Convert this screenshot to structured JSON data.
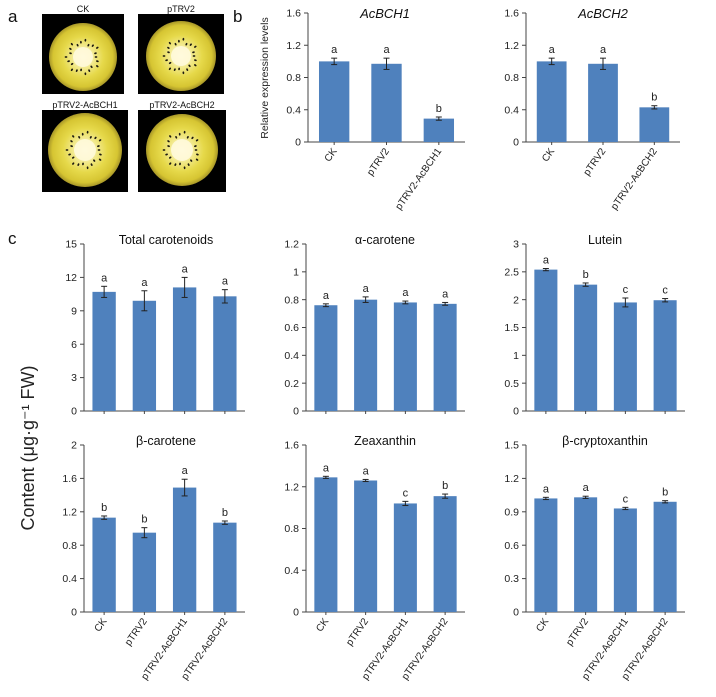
{
  "panel_labels": {
    "a": "a",
    "b": "b",
    "c": "c"
  },
  "fruit_labels": [
    "CK",
    "pTRV2",
    "pTRV2-AcBCH1",
    "pTRV2-AcBCH2"
  ],
  "y_label_b": "Relative expression levels",
  "y_label_c": "Content (μg·g⁻¹ FW)",
  "colors": {
    "bar": "#4f81bd",
    "axis": "#444444"
  },
  "chart_data": [
    {
      "id": "b1",
      "type": "bar",
      "title": "AcBCH1",
      "italic_title": true,
      "categories": [
        "CK",
        "pTRV2",
        "pTRV2-AcBCH1"
      ],
      "values": [
        1.0,
        0.97,
        0.29
      ],
      "errors": [
        0.04,
        0.07,
        0.02
      ],
      "letters": [
        "a",
        "a",
        "b"
      ],
      "ylim": [
        0,
        1.6
      ],
      "ticks": [
        "0",
        "0.4",
        "0.8",
        "1.2",
        "1.6"
      ],
      "ylabel": "Relative expression levels",
      "grid": false
    },
    {
      "id": "b2",
      "type": "bar",
      "title": "AcBCH2",
      "italic_title": true,
      "categories": [
        "CK",
        "pTRV2",
        "pTRV2-AcBCH2"
      ],
      "values": [
        1.0,
        0.97,
        0.43
      ],
      "errors": [
        0.04,
        0.07,
        0.02
      ],
      "letters": [
        "a",
        "a",
        "b"
      ],
      "ylim": [
        0,
        1.6
      ],
      "ticks": [
        "0",
        "0.4",
        "0.8",
        "1.2",
        "1.6"
      ],
      "grid": false
    },
    {
      "id": "c1",
      "type": "bar",
      "title": "Total carotenoids",
      "categories": [
        "CK",
        "pTRV2",
        "pTRV2-AcBCH1",
        "pTRV2-AcBCH2"
      ],
      "values": [
        10.7,
        9.9,
        11.1,
        10.3
      ],
      "errors": [
        0.5,
        0.9,
        0.9,
        0.6
      ],
      "letters": [
        "a",
        "a",
        "a",
        "a"
      ],
      "ylim": [
        0,
        15
      ],
      "ticks": [
        "0",
        "3",
        "6",
        "9",
        "12",
        "15"
      ],
      "grid": false
    },
    {
      "id": "c2",
      "type": "bar",
      "title": "α-carotene",
      "categories": [
        "CK",
        "pTRV2",
        "pTRV2-AcBCH1",
        "pTRV2-AcBCH2"
      ],
      "values": [
        0.76,
        0.8,
        0.78,
        0.77
      ],
      "errors": [
        0.01,
        0.02,
        0.01,
        0.01
      ],
      "letters": [
        "a",
        "a",
        "a",
        "a"
      ],
      "ylim": [
        0,
        1.2
      ],
      "ticks": [
        "0",
        "0.2",
        "0.4",
        "0.6",
        "0.8",
        "1",
        "1.2"
      ],
      "grid": false
    },
    {
      "id": "c3",
      "type": "bar",
      "title": "Lutein",
      "categories": [
        "CK",
        "pTRV2",
        "pTRV2-AcBCH1",
        "pTRV2-AcBCH2"
      ],
      "values": [
        2.54,
        2.27,
        1.95,
        1.99
      ],
      "errors": [
        0.02,
        0.03,
        0.08,
        0.03
      ],
      "letters": [
        "a",
        "b",
        "c",
        "c"
      ],
      "ylim": [
        0,
        3
      ],
      "ticks": [
        "0",
        "0.5",
        "1",
        "1.5",
        "2",
        "2.5",
        "3"
      ],
      "grid": false
    },
    {
      "id": "c4",
      "type": "bar",
      "title": "β-carotene",
      "categories": [
        "CK",
        "pTRV2",
        "pTRV2-AcBCH1",
        "pTRV2-AcBCH2"
      ],
      "values": [
        1.13,
        0.95,
        1.49,
        1.07
      ],
      "errors": [
        0.02,
        0.06,
        0.1,
        0.02
      ],
      "letters": [
        "b",
        "b",
        "a",
        "b"
      ],
      "ylim": [
        0,
        2
      ],
      "ticks": [
        "0",
        "0.4",
        "0.8",
        "1.2",
        "1.6",
        "2"
      ],
      "grid": false
    },
    {
      "id": "c5",
      "type": "bar",
      "title": "Zeaxanthin",
      "categories": [
        "CK",
        "pTRV2",
        "pTRV2-AcBCH1",
        "pTRV2-AcBCH2"
      ],
      "values": [
        1.29,
        1.26,
        1.04,
        1.11
      ],
      "errors": [
        0.01,
        0.01,
        0.02,
        0.02
      ],
      "letters": [
        "a",
        "a",
        "c",
        "b"
      ],
      "ylim": [
        0,
        1.6
      ],
      "ticks": [
        "0",
        "0.4",
        "0.8",
        "1.2",
        "1.6"
      ],
      "grid": false
    },
    {
      "id": "c6",
      "type": "bar",
      "title": "β-cryptoxanthin",
      "categories": [
        "CK",
        "pTRV2",
        "pTRV2-AcBCH1",
        "pTRV2-AcBCH2"
      ],
      "values": [
        1.02,
        1.03,
        0.93,
        0.99
      ],
      "errors": [
        0.01,
        0.01,
        0.01,
        0.01
      ],
      "letters": [
        "a",
        "a",
        "c",
        "b"
      ],
      "ylim": [
        0,
        1.5
      ],
      "ticks": [
        "0",
        "0.3",
        "0.6",
        "0.9",
        "1.2",
        "1.5"
      ],
      "grid": false
    }
  ]
}
